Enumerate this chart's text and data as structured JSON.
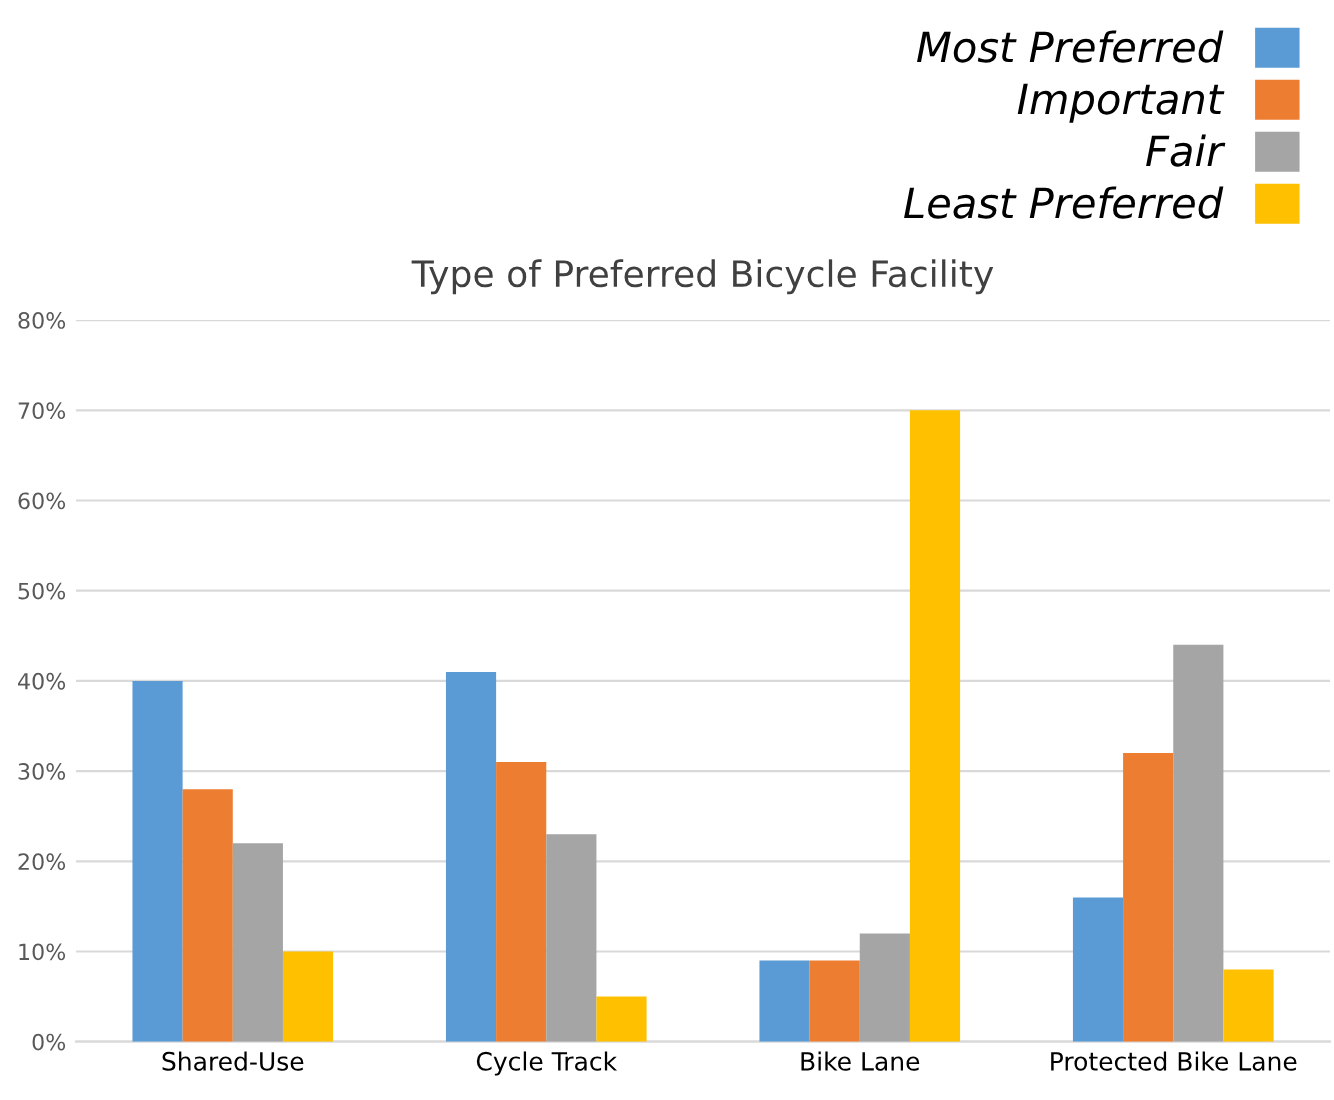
{
  "chart_data": {
    "type": "bar",
    "title": "Type of Preferred Bicycle Facility",
    "categories": [
      "Shared-Use",
      "Cycle Track",
      "Bike Lane",
      "Protected Bike Lane"
    ],
    "series": [
      {
        "name": "Most Preferred",
        "color": "#5b9bd5",
        "values": [
          40,
          41,
          9,
          16
        ]
      },
      {
        "name": "Important",
        "color": "#ed7d31",
        "values": [
          28,
          31,
          9,
          32
        ]
      },
      {
        "name": "Fair",
        "color": "#a5a5a5",
        "values": [
          22,
          23,
          12,
          44
        ]
      },
      {
        "name": "Least Preferred",
        "color": "#ffc000",
        "values": [
          10,
          5,
          70,
          8
        ]
      }
    ],
    "ylim": [
      0,
      80
    ],
    "yticks": [
      {
        "value": 0,
        "label": "0%"
      },
      {
        "value": 10,
        "label": "10%"
      },
      {
        "value": 20,
        "label": "20%"
      },
      {
        "value": 30,
        "label": "30%"
      },
      {
        "value": 40,
        "label": "40%"
      },
      {
        "value": 50,
        "label": "50%"
      },
      {
        "value": 60,
        "label": "60%"
      },
      {
        "value": 70,
        "label": "70%"
      },
      {
        "value": 80,
        "label": "80%"
      }
    ],
    "grid": "y",
    "legend": "top right"
  }
}
